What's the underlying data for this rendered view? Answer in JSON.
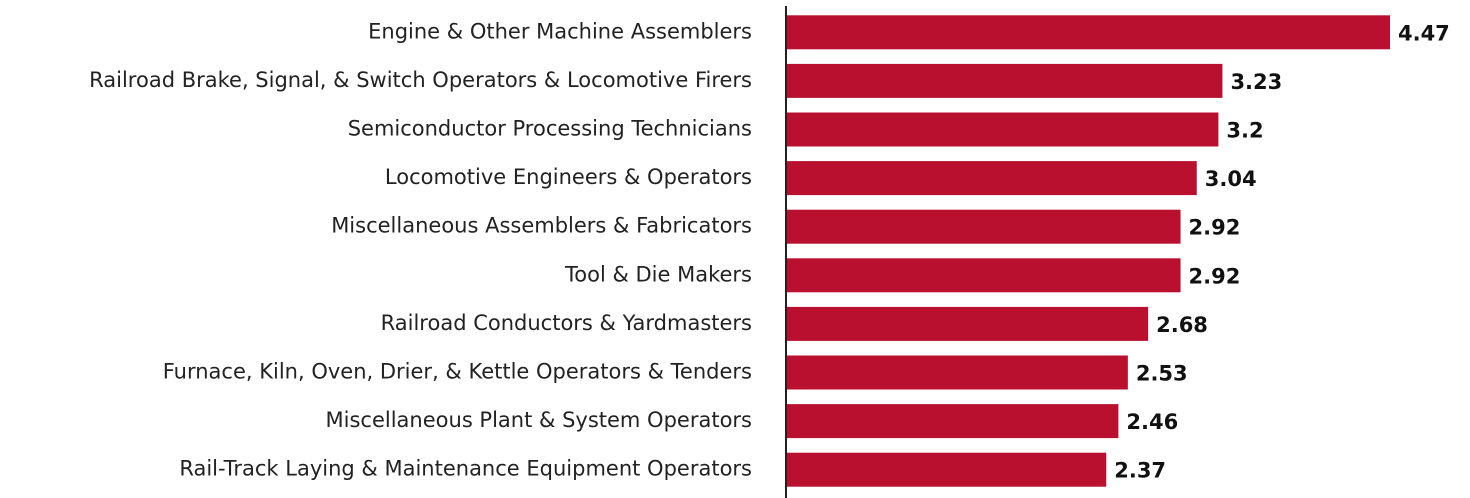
{
  "chart_data": {
    "type": "barh",
    "categories": [
      "Engine & Other Machine Assemblers",
      "Railroad Brake, Signal, & Switch Operators & Locomotive Firers",
      "Semiconductor Processing Technicians",
      "Locomotive Engineers & Operators",
      "Miscellaneous Assemblers & Fabricators",
      "Tool & Die Makers",
      "Railroad Conductors & Yardmasters",
      "Furnace, Kiln, Oven, Drier, & Kettle Operators & Tenders",
      "Miscellaneous Plant & System Operators",
      "Rail-Track Laying & Maintenance Equipment Operators"
    ],
    "values": [
      4.47,
      3.23,
      3.2,
      3.04,
      2.92,
      2.92,
      2.68,
      2.53,
      2.46,
      2.37
    ],
    "color": "#ba1030",
    "xlim": [
      0,
      5
    ]
  }
}
